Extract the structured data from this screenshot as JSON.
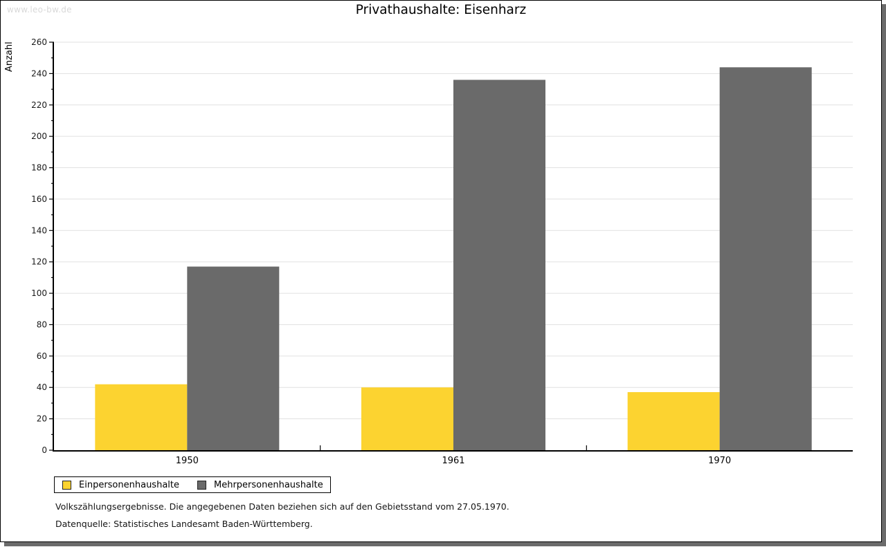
{
  "page": {
    "watermark": "www.leo-bw.de",
    "notes": [
      "Volkszählungsergebnisse. Die angegebenen Daten beziehen sich auf den Gebietsstand vom 27.05.1970.",
      "Datenquelle: Statistisches Landesamt Baden-Württemberg."
    ]
  },
  "chart_data": {
    "type": "bar",
    "title": "Privathaushalte: Eisenharz",
    "ylabel": "Anzahl",
    "categories": [
      "1950",
      "1961",
      "1970"
    ],
    "series": [
      {
        "name": "Einpersonenhaushalte",
        "color": "#fcd330",
        "values": [
          42,
          40,
          37
        ]
      },
      {
        "name": "Mehrpersonenhaushalte",
        "color": "#6a6a6a",
        "values": [
          117,
          236,
          244
        ]
      }
    ],
    "ylim": [
      0,
      260
    ],
    "ytick_step": 20,
    "yminor_step": 10,
    "yticks": [
      0,
      20,
      40,
      60,
      80,
      100,
      120,
      140,
      160,
      180,
      200,
      220,
      240,
      260
    ],
    "grid": "horizontal-major",
    "legend_position": "bottom-left",
    "colors": {
      "gridline": "#e1e1e1",
      "axis": "#000000",
      "shadow": "#6b6b6b"
    }
  }
}
